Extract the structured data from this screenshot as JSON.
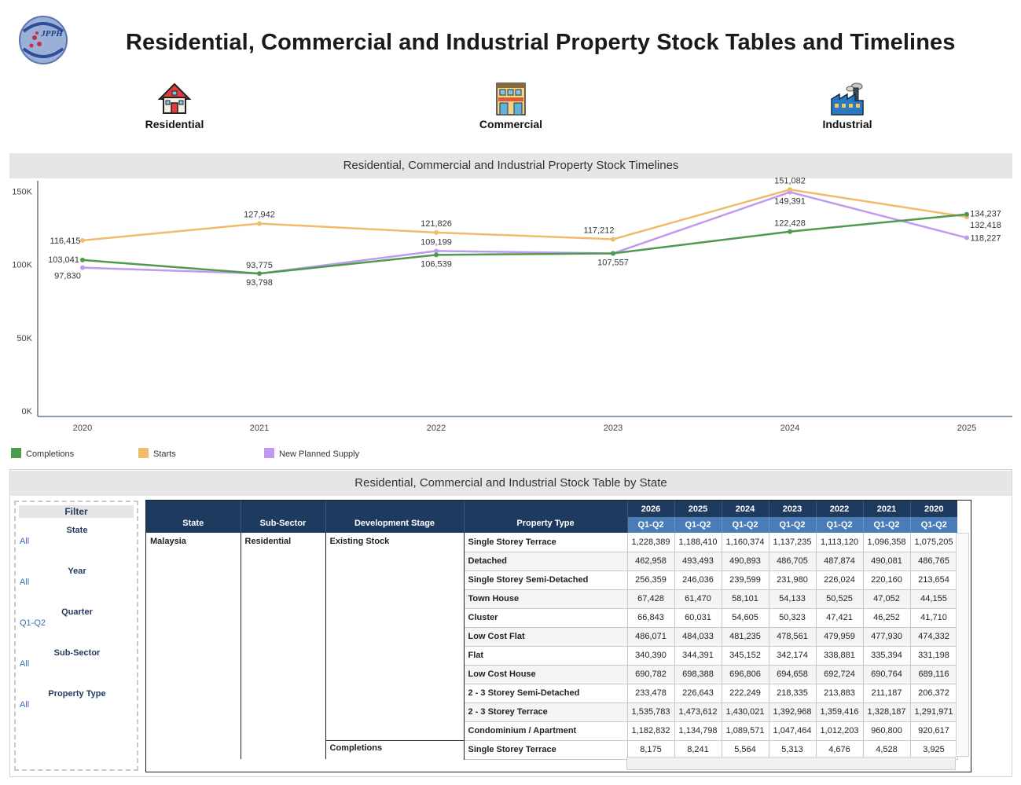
{
  "header": {
    "title": "Residential, Commercial and Industrial Property Stock Tables and Timelines",
    "logo_text": "JPPH"
  },
  "nav": [
    {
      "label": "Residential",
      "icon": "house-icon"
    },
    {
      "label": "Commercial",
      "icon": "shop-building-icon"
    },
    {
      "label": "Industrial",
      "icon": "factory-icon"
    }
  ],
  "timeline_section": {
    "title": "Residential, Commercial and Industrial Property Stock Timelines"
  },
  "chart_data": {
    "type": "line",
    "categories": [
      "2020",
      "2021",
      "2022",
      "2023",
      "2024",
      "2025"
    ],
    "yticks": [
      "150K",
      "100K",
      "50K",
      "0K"
    ],
    "ylim": [
      0,
      155000
    ],
    "series": [
      {
        "name": "Completions",
        "color": "#4e9a4e",
        "values": [
          103041,
          93775,
          106539,
          107557,
          122428,
          134237
        ],
        "labels": [
          "103,041",
          "93,775",
          "106,539",
          "107,557",
          "122,428",
          "134,237"
        ]
      },
      {
        "name": "Starts",
        "color": "#f0bb6a",
        "values": [
          116415,
          127942,
          121826,
          117212,
          151082,
          132418
        ],
        "labels": [
          "116,415",
          "127,942",
          "121,826",
          "117,212",
          "151,082",
          "132,418"
        ]
      },
      {
        "name": "New Planned Supply",
        "color": "#c09af0",
        "values": [
          97830,
          93798,
          109199,
          107557,
          149391,
          118227
        ],
        "labels": [
          "97,830",
          "93,798",
          "109,199",
          "",
          "149,391",
          "118,227"
        ]
      }
    ],
    "legend_position": "bottom-left",
    "grid": false
  },
  "table_section": {
    "title": "Residential, Commercial and Industrial Stock Table by State"
  },
  "filters": {
    "title": "Filter",
    "groups": [
      {
        "label": "State",
        "value": "All"
      },
      {
        "label": "Year",
        "value": "All"
      },
      {
        "label": "Quarter",
        "value": "Q1-Q2"
      },
      {
        "label": "Sub-Sector",
        "value": "All"
      },
      {
        "label": "Property Type",
        "value": "All"
      }
    ]
  },
  "table": {
    "columns": [
      "State",
      "Sub-Sector",
      "Development Stage",
      "Property Type"
    ],
    "years": [
      "2026",
      "2025",
      "2024",
      "2023",
      "2022",
      "2021",
      "2020"
    ],
    "quarter": "Q1-Q2",
    "state": "Malaysia",
    "sub_sector": "Residential",
    "stage_existing": "Existing Stock",
    "stage_completions": "Completions",
    "rows": [
      {
        "type": "Single Storey Terrace",
        "values": [
          "1,228,389",
          "1,188,410",
          "1,160,374",
          "1,137,235",
          "1,113,120",
          "1,096,358",
          "1,075,205"
        ]
      },
      {
        "type": "Detached",
        "values": [
          "462,958",
          "493,493",
          "490,893",
          "486,705",
          "487,874",
          "490,081",
          "486,765"
        ]
      },
      {
        "type": "Single Storey Semi-Detached",
        "values": [
          "256,359",
          "246,036",
          "239,599",
          "231,980",
          "226,024",
          "220,160",
          "213,654"
        ]
      },
      {
        "type": "Town House",
        "values": [
          "67,428",
          "61,470",
          "58,101",
          "54,133",
          "50,525",
          "47,052",
          "44,155"
        ]
      },
      {
        "type": "Cluster",
        "values": [
          "66,843",
          "60,031",
          "54,605",
          "50,323",
          "47,421",
          "46,252",
          "41,710"
        ]
      },
      {
        "type": "Low Cost Flat",
        "values": [
          "486,071",
          "484,033",
          "481,235",
          "478,561",
          "479,959",
          "477,930",
          "474,332"
        ]
      },
      {
        "type": "Flat",
        "values": [
          "340,390",
          "344,391",
          "345,152",
          "342,174",
          "338,881",
          "335,394",
          "331,198"
        ]
      },
      {
        "type": "Low Cost House",
        "values": [
          "690,782",
          "698,388",
          "696,806",
          "694,658",
          "692,724",
          "690,764",
          "689,116"
        ]
      },
      {
        "type": "2 - 3 Storey Semi-Detached",
        "values": [
          "233,478",
          "226,643",
          "222,249",
          "218,335",
          "213,883",
          "211,187",
          "206,372"
        ]
      },
      {
        "type": "2 - 3 Storey Terrace",
        "values": [
          "1,535,783",
          "1,473,612",
          "1,430,021",
          "1,392,968",
          "1,359,416",
          "1,328,187",
          "1,291,971"
        ]
      },
      {
        "type": "Condominium / Apartment",
        "values": [
          "1,182,832",
          "1,134,798",
          "1,089,571",
          "1,047,464",
          "1,012,203",
          "960,800",
          "920,617"
        ]
      }
    ],
    "completion_rows": [
      {
        "type": "Single Storey Terrace",
        "values": [
          "8,175",
          "8,241",
          "5,564",
          "5,313",
          "4,676",
          "4,528",
          "3,925"
        ]
      }
    ]
  }
}
